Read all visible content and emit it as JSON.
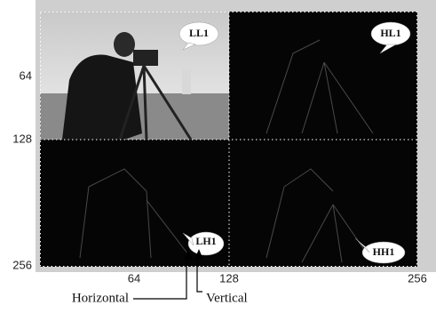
{
  "figure": {
    "y_ticks": [
      "64",
      "128",
      "256"
    ],
    "x_ticks": [
      "64",
      "128",
      "256"
    ],
    "subbands": [
      "LL1",
      "HL1",
      "LH1",
      "HH1"
    ],
    "callouts": [
      "Horizontal",
      "Vertical"
    ]
  }
}
